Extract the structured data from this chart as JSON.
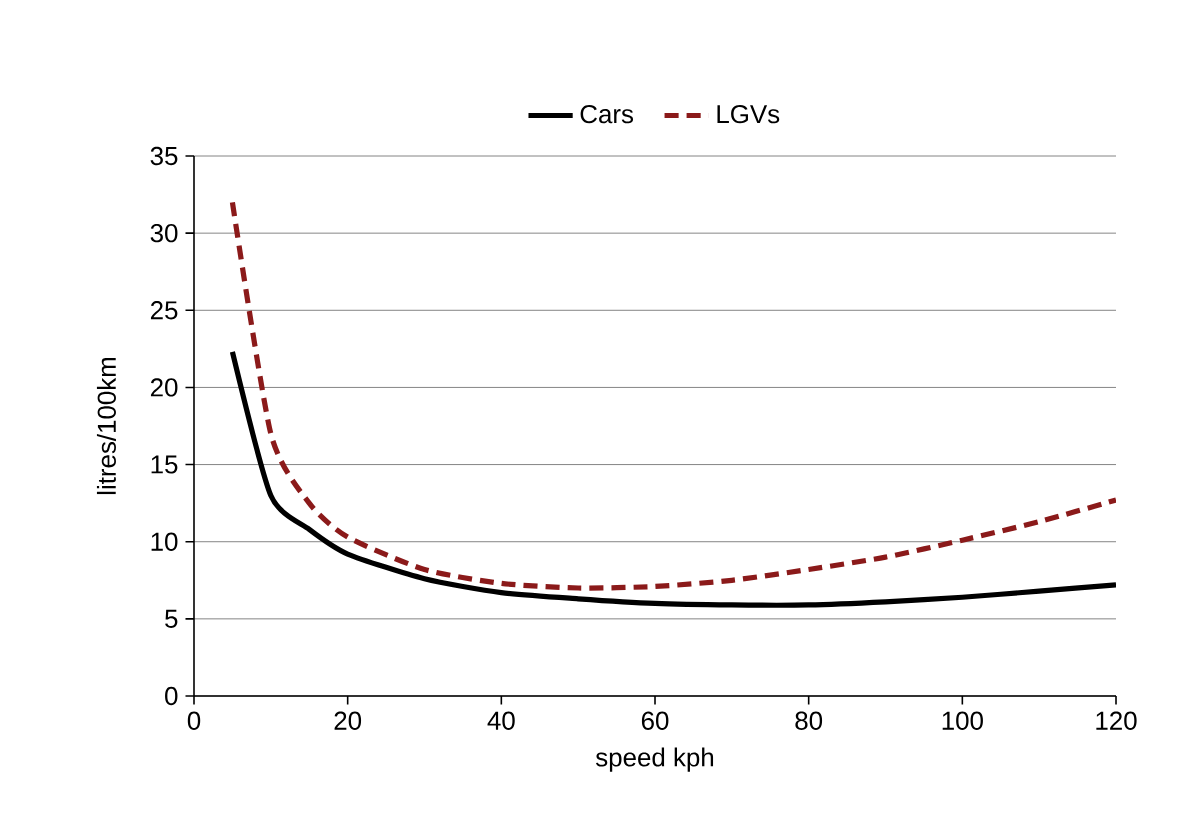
{
  "chart_data": {
    "type": "line",
    "xlabel": "speed kph",
    "ylabel": "litres/100km",
    "x": [
      5,
      10,
      15,
      20,
      30,
      40,
      50,
      60,
      70,
      80,
      90,
      100,
      110,
      120
    ],
    "series": [
      {
        "name": "Cars",
        "color": "#000000",
        "line_style": "solid",
        "values": [
          22.3,
          13,
          10.8,
          9.2,
          7.6,
          6.7,
          6.3,
          6.0,
          5.9,
          5.9,
          6.1,
          6.4,
          6.8,
          7.2
        ]
      },
      {
        "name": "LGVs",
        "color": "#8b1a1a",
        "line_style": "dashed",
        "values": [
          32,
          17,
          12.5,
          10.3,
          8.2,
          7.3,
          7.0,
          7.1,
          7.5,
          8.2,
          9.0,
          10.1,
          11.3,
          12.7
        ]
      }
    ],
    "xlim": [
      0,
      120
    ],
    "xticks": [
      0,
      20,
      40,
      60,
      80,
      100,
      120
    ],
    "ylim": [
      0,
      35
    ],
    "yticks": [
      0,
      5,
      10,
      15,
      20,
      25,
      30,
      35
    ],
    "grid": "y",
    "legend": "top",
    "marker": "none"
  }
}
